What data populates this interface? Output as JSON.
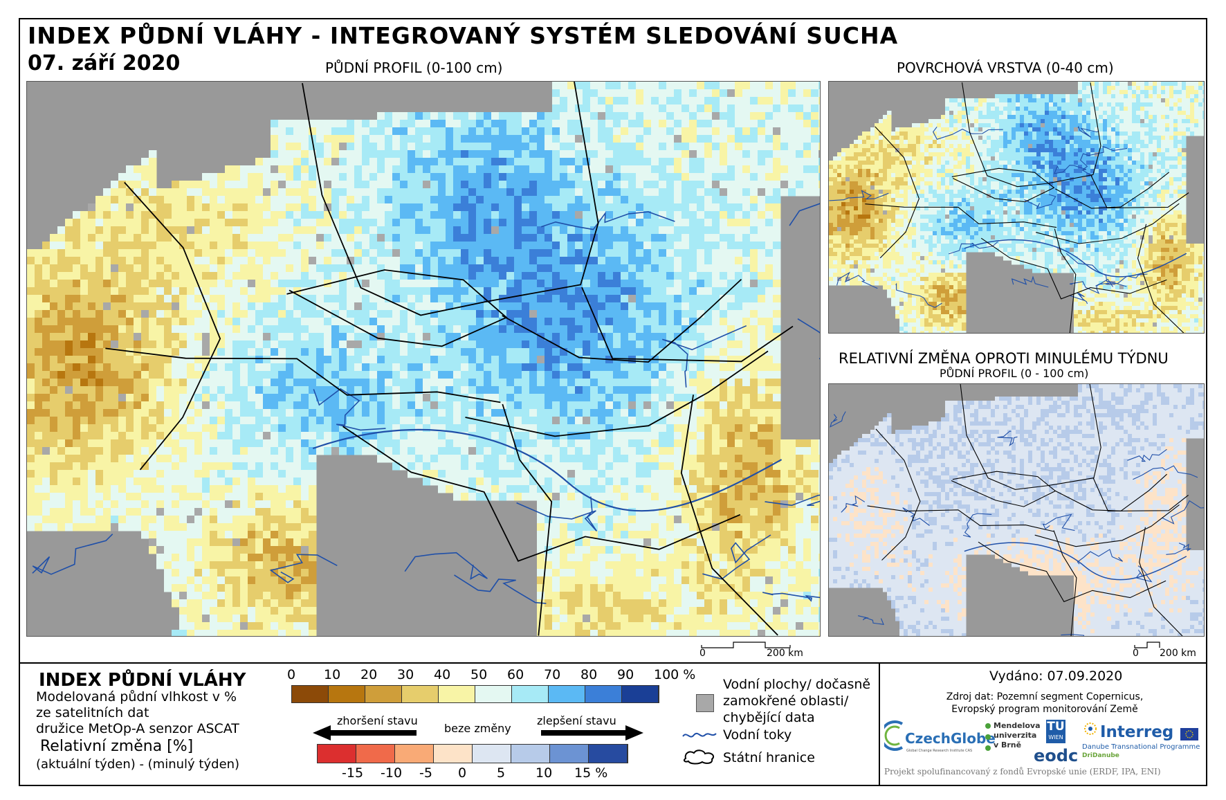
{
  "header": {
    "title": "INDEX PŮDNÍ VLÁHY - INTEGROVANÝ SYSTÉM SLEDOVÁNÍ SUCHA",
    "date": "07. září 2020"
  },
  "maps": {
    "main_label": "PŮDNÍ PROFIL (0-100 cm)",
    "surface_label": "POVRCHOVÁ VRSTVA (0-40 cm)",
    "change_label": "RELATIVNÍ ZMĚNA OPROTI MINULÉMU TÝDNU",
    "change_sublabel": "PŮDNÍ PROFIL (0 - 100 cm)",
    "scale_zero": "0",
    "scale_main": "200 km",
    "scale_small": "200 km"
  },
  "legend": {
    "title": "INDEX PŮDNÍ VLÁHY",
    "desc1": "Modelovaná půdní vlhkost v %",
    "desc2": "ze satelitních dat",
    "desc3": "družice MetOp-A senzor ASCAT",
    "rel_title": "Relativní změna [%]",
    "rel_desc": "(aktuální týden) - (minulý týden)",
    "index_ticks": [
      "0",
      "10",
      "20",
      "30",
      "40",
      "50",
      "60",
      "70",
      "80",
      "90",
      "100 %"
    ],
    "index_colors": [
      "#8c4a08",
      "#b7760f",
      "#cf9e3a",
      "#e6cd6c",
      "#f8f4a6",
      "#e4f8f2",
      "#a7eaf6",
      "#5bb9f4",
      "#3b7fd8",
      "#1a3f96"
    ],
    "change_ticks": [
      "-15",
      "-10",
      "-5",
      "0",
      "5",
      "10",
      "15 %"
    ],
    "change_colors": [
      "#dc2f2f",
      "#f06a4a",
      "#f9aa76",
      "#fde3c8",
      "#dde6f2",
      "#b7cbe9",
      "#6c93d3",
      "#274ba0"
    ],
    "arrow_worse": "zhoršení stavu",
    "arrow_none": "beze změny",
    "arrow_better": "zlepšení stavu",
    "symbols": {
      "water": "Vodní plochy/ dočasně zamokřené oblasti/ chybějící data",
      "water_l1": "Vodní plochy/ dočasně",
      "water_l2": "zamokřené oblasti/",
      "water_l3": "chybějící data",
      "rivers": "Vodní toky",
      "borders": "Státní hranice"
    }
  },
  "info": {
    "issued": "Vydáno: 07.09.2020",
    "source1": "Zdroj dat: Pozemní segment Copernicus,",
    "source2": "Evropský program monitorování Země",
    "logos": {
      "czechglobe": "CzechGlobe",
      "czechglobe_sub": "Global Change Research Institute CAS",
      "mendel1": "Mendelova",
      "mendel2": "univerzita",
      "mendel3": "v Brně",
      "tu": "TU",
      "tu_sub": "WIEN",
      "eodc": "eodc",
      "interreg": "Interreg",
      "interreg_sub1": "Danube Transnational Programme",
      "interreg_sub2": "DriDanube"
    },
    "footer": "Projekt spolufinancovaný z fondů Evropské unie (ERDF, IPA, ENI)"
  },
  "colors": {
    "sea": "#999999",
    "river": "#1f4fa8",
    "border": "#000000",
    "missing": "#a8a8a8"
  }
}
